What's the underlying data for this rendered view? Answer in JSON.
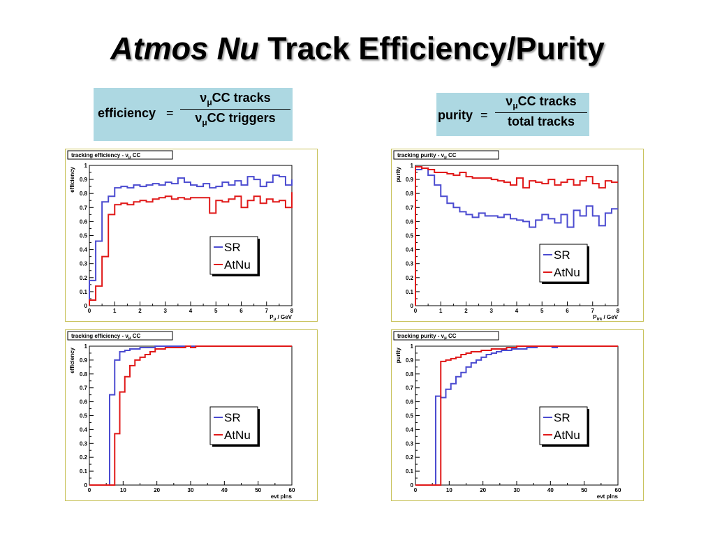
{
  "slide": {
    "title_italic": "Atmos Nu",
    "title_rest": " Track Efficiency/Purity"
  },
  "formulas": {
    "efficiency": {
      "lhs": "efficiency",
      "eq": "=",
      "num_nu": "ν",
      "num_mu": "μ",
      "num_rest": "CC tracks",
      "den_nu": "ν",
      "den_mu": "μ",
      "den_rest": "CC triggers"
    },
    "purity": {
      "lhs": "purity",
      "eq": "=",
      "num_nu": "ν",
      "num_mu": "μ",
      "num_rest": "CC tracks",
      "den": "total tracks"
    }
  },
  "colors": {
    "SR": "#4b4bd0",
    "AtNu": "#e01818",
    "panel_border": "#c8c25a",
    "formula_bg": "#add8e2"
  },
  "chart_data": [
    {
      "type": "line",
      "step": true,
      "panel_title": "tracking efficiency - ν",
      "panel_title_sub": "μ",
      "panel_title_tail": " CC",
      "ylabel": "efficiency",
      "xlabel_main": "P",
      "xlabel_sub": "μ",
      "xlabel_tail": " / GeV",
      "xlim": [
        0,
        8
      ],
      "ylim": [
        0,
        1
      ],
      "xticks": [
        0,
        1,
        2,
        3,
        4,
        5,
        6,
        7,
        8
      ],
      "yticks": [
        0,
        0.1,
        0.2,
        0.3,
        0.4,
        0.5,
        0.6,
        0.7,
        0.8,
        0.9,
        1
      ],
      "xtick_labels": [
        "0",
        "1",
        "2",
        "3",
        "4",
        "5",
        "6",
        "7",
        "8"
      ],
      "ytick_labels": [
        "0",
        "0.1",
        "0.2",
        "0.3",
        "0.4",
        "0.5",
        "0.6",
        "0.7",
        "0.8",
        "0.9",
        "1"
      ],
      "legend": [
        "SR",
        "AtNu"
      ],
      "bin_width": 0.25,
      "series": [
        {
          "name": "SR",
          "values": [
            0.18,
            0.46,
            0.74,
            0.78,
            0.84,
            0.85,
            0.84,
            0.86,
            0.85,
            0.86,
            0.87,
            0.86,
            0.88,
            0.87,
            0.91,
            0.88,
            0.86,
            0.85,
            0.87,
            0.84,
            0.85,
            0.88,
            0.86,
            0.89,
            0.86,
            0.92,
            0.9,
            0.85,
            0.88,
            0.93,
            0.92,
            0.86,
            0.9
          ]
        },
        {
          "name": "AtNu",
          "values": [
            0.04,
            0.14,
            0.35,
            0.65,
            0.72,
            0.73,
            0.72,
            0.74,
            0.75,
            0.74,
            0.76,
            0.77,
            0.78,
            0.76,
            0.77,
            0.76,
            0.77,
            0.77,
            0.77,
            0.66,
            0.75,
            0.74,
            0.76,
            0.78,
            0.7,
            0.75,
            0.78,
            0.73,
            0.76,
            0.74,
            0.75,
            0.7,
            0.81
          ]
        }
      ]
    },
    {
      "type": "line",
      "step": true,
      "panel_title": "tracking purity - ν",
      "panel_title_sub": "μ",
      "panel_title_tail": " CC",
      "ylabel": "purity",
      "xlabel_main": "P",
      "xlabel_sub": "trk",
      "xlabel_tail": " / GeV",
      "xlim": [
        0,
        8
      ],
      "ylim": [
        0,
        1
      ],
      "xticks": [
        0,
        1,
        2,
        3,
        4,
        5,
        6,
        7,
        8
      ],
      "yticks": [
        0,
        0.1,
        0.2,
        0.3,
        0.4,
        0.5,
        0.6,
        0.7,
        0.8,
        0.9,
        1
      ],
      "xtick_labels": [
        "0",
        "1",
        "2",
        "3",
        "4",
        "5",
        "6",
        "7",
        "8"
      ],
      "ytick_labels": [
        "0",
        "0.1",
        "0.2",
        "0.3",
        "0.4",
        "0.5",
        "0.6",
        "0.7",
        "0.8",
        "0.9",
        "1"
      ],
      "legend": [
        "SR",
        "AtNu"
      ],
      "bin_width": 0.25,
      "series": [
        {
          "name": "SR",
          "values": [
            0.97,
            0.98,
            0.93,
            0.86,
            0.78,
            0.73,
            0.7,
            0.67,
            0.65,
            0.63,
            0.66,
            0.64,
            0.64,
            0.63,
            0.65,
            0.62,
            0.61,
            0.6,
            0.56,
            0.61,
            0.65,
            0.62,
            0.59,
            0.65,
            0.56,
            0.68,
            0.64,
            0.71,
            0.64,
            0.57,
            0.66,
            0.69
          ]
        },
        {
          "name": "AtNu",
          "values": [
            0.99,
            0.98,
            0.97,
            0.95,
            0.95,
            0.94,
            0.93,
            0.95,
            0.92,
            0.91,
            0.91,
            0.91,
            0.9,
            0.89,
            0.88,
            0.86,
            0.91,
            0.84,
            0.89,
            0.88,
            0.87,
            0.9,
            0.86,
            0.88,
            0.9,
            0.86,
            0.89,
            0.92,
            0.87,
            0.84,
            0.89,
            0.88
          ]
        }
      ]
    },
    {
      "type": "line",
      "step": true,
      "panel_title": "tracking efficiency - ν",
      "panel_title_sub": "μ",
      "panel_title_tail": " CC",
      "ylabel": "efficiency",
      "xlabel_main": "evt plns",
      "xlabel_sub": "",
      "xlabel_tail": "",
      "xlim": [
        0,
        60
      ],
      "ylim": [
        0,
        1
      ],
      "xticks": [
        0,
        10,
        20,
        30,
        40,
        50,
        60
      ],
      "yticks": [
        0,
        0.1,
        0.2,
        0.3,
        0.4,
        0.5,
        0.6,
        0.7,
        0.8,
        0.9,
        1
      ],
      "xtick_labels": [
        "0",
        "10",
        "20",
        "30",
        "40",
        "50",
        "60"
      ],
      "ytick_labels": [
        "0",
        "0.1",
        "0.2",
        "0.3",
        "0.4",
        "0.5",
        "0.6",
        "0.7",
        "0.8",
        "0.9",
        "1"
      ],
      "legend": [
        "SR",
        "AtNu"
      ],
      "bin_width": 1.5,
      "series": [
        {
          "name": "SR",
          "values": [
            0,
            0,
            0,
            0,
            0.65,
            0.9,
            0.96,
            0.97,
            0.98,
            0.98,
            0.99,
            0.99,
            0.99,
            1.0,
            1.0,
            1.0,
            1.0,
            1.0,
            1.0,
            1.0,
            1.0,
            1.0,
            1.0,
            1.0,
            1.0,
            1.0,
            1.0,
            1.0,
            1.0,
            1.0,
            1.0,
            1.0,
            1.0,
            1.0,
            1.0,
            1.0,
            1.0,
            1.0,
            1.0,
            1.0
          ]
        },
        {
          "name": "AtNu",
          "values": [
            0,
            0,
            0,
            0,
            0,
            0.37,
            0.67,
            0.78,
            0.86,
            0.9,
            0.92,
            0.94,
            0.96,
            0.98,
            0.98,
            0.99,
            0.99,
            0.99,
            0.99,
            1.0,
            0.99,
            1.0,
            1.0,
            1.0,
            1.0,
            1.0,
            1.0,
            1.0,
            1.0,
            1.0,
            1.0,
            1.0,
            1.0,
            1.0,
            1.0,
            1.0,
            1.0,
            1.0,
            1.0,
            1.0
          ]
        }
      ]
    },
    {
      "type": "line",
      "step": true,
      "panel_title": "tracking purity - ν",
      "panel_title_sub": "μ",
      "panel_title_tail": " CC",
      "ylabel": "purity",
      "xlabel_main": "evt plns",
      "xlabel_sub": "",
      "xlabel_tail": "",
      "xlim": [
        0,
        60
      ],
      "ylim": [
        0,
        1
      ],
      "xticks": [
        0,
        10,
        20,
        30,
        40,
        50,
        60
      ],
      "yticks": [
        0,
        0.1,
        0.2,
        0.3,
        0.4,
        0.5,
        0.6,
        0.7,
        0.8,
        0.9,
        1
      ],
      "xtick_labels": [
        "0",
        "10",
        "20",
        "30",
        "40",
        "50",
        "60"
      ],
      "ytick_labels": [
        "0",
        "0.1",
        "0.2",
        "0.3",
        "0.4",
        "0.5",
        "0.6",
        "0.7",
        "0.8",
        "0.9",
        "1"
      ],
      "legend": [
        "SR",
        "AtNu"
      ],
      "bin_width": 1.5,
      "series": [
        {
          "name": "SR",
          "values": [
            0,
            0,
            0,
            0,
            0.64,
            0.63,
            0.69,
            0.73,
            0.78,
            0.81,
            0.85,
            0.88,
            0.9,
            0.92,
            0.94,
            0.95,
            0.96,
            0.97,
            0.97,
            0.98,
            0.98,
            0.98,
            0.99,
            0.99,
            1.0,
            1.0,
            1.0,
            0.99,
            1.0,
            1.0,
            1.0,
            1.0,
            1.0,
            1.0,
            1.0,
            1.0,
            1.0,
            1.0,
            1.0,
            1.0
          ]
        },
        {
          "name": "AtNu",
          "values": [
            0,
            0,
            0,
            0,
            0,
            0.89,
            0.9,
            0.91,
            0.92,
            0.94,
            0.95,
            0.96,
            0.96,
            0.97,
            0.97,
            0.98,
            0.98,
            0.98,
            0.99,
            0.99,
            1.0,
            1.0,
            1.0,
            1.0,
            1.0,
            1.0,
            1.0,
            1.0,
            1.0,
            1.0,
            1.0,
            1.0,
            1.0,
            1.0,
            1.0,
            1.0,
            1.0,
            1.0,
            1.0,
            1.0
          ]
        }
      ]
    }
  ]
}
